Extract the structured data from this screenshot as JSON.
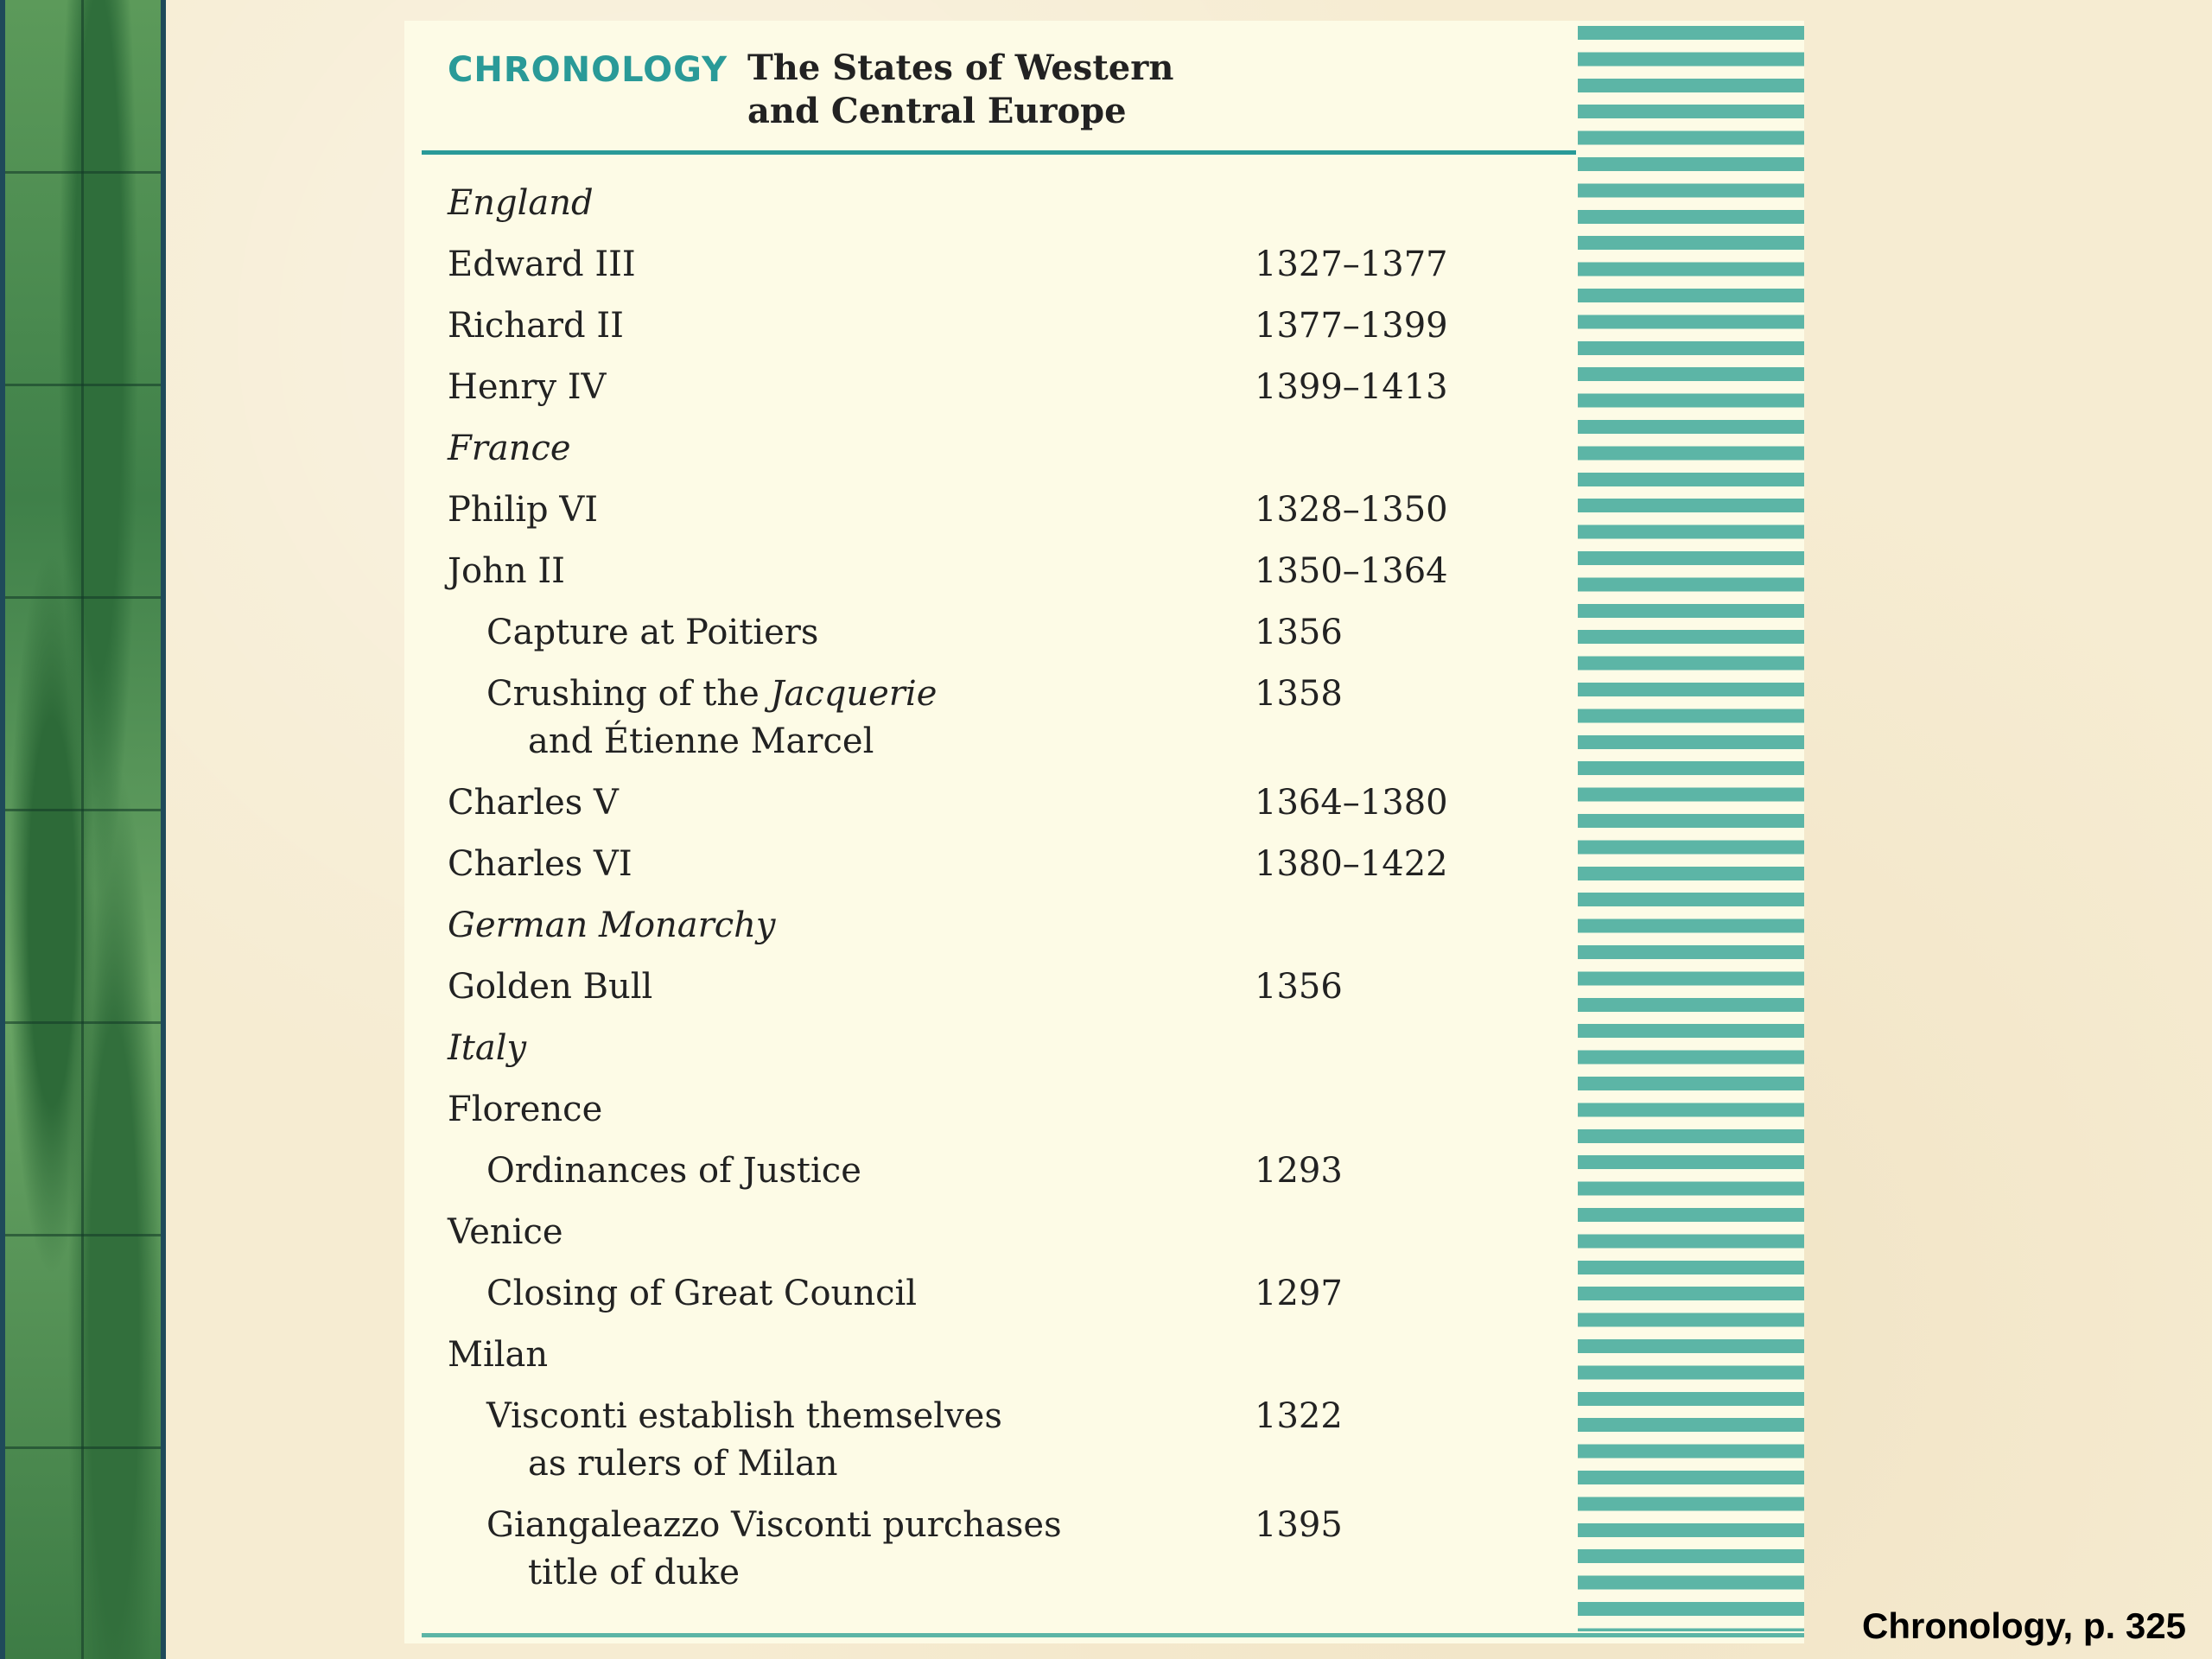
{
  "header": {
    "kicker": "CHRONOLOGY",
    "title": "The States of Western and Central Europe"
  },
  "table": {
    "rows": [
      {
        "lines": [
          "England"
        ],
        "kind": "heading"
      },
      {
        "lines": [
          "Edward III"
        ],
        "date": "1327–1377"
      },
      {
        "lines": [
          "Richard II"
        ],
        "date": "1377–1399"
      },
      {
        "lines": [
          "Henry IV"
        ],
        "date": "1399–1413"
      },
      {
        "lines": [
          "France"
        ],
        "kind": "heading"
      },
      {
        "lines": [
          "Philip VI"
        ],
        "date": "1328–1350"
      },
      {
        "lines": [
          "John II"
        ],
        "date": "1350–1364"
      },
      {
        "lines": [
          "Capture at Poitiers"
        ],
        "date": "1356",
        "indent": 1
      },
      {
        "lines": [
          [
            "Crushing of the ",
            {
              "italic": "Jacquerie"
            }
          ],
          "and Étienne Marcel"
        ],
        "date": "1358",
        "indent": 1
      },
      {
        "lines": [
          "Charles V"
        ],
        "date": "1364–1380"
      },
      {
        "lines": [
          "Charles VI"
        ],
        "date": "1380–1422"
      },
      {
        "lines": [
          "German Monarchy"
        ],
        "kind": "heading"
      },
      {
        "lines": [
          "Golden Bull"
        ],
        "date": "1356"
      },
      {
        "lines": [
          "Italy"
        ],
        "kind": "heading"
      },
      {
        "lines": [
          "Florence"
        ]
      },
      {
        "lines": [
          "Ordinances of Justice"
        ],
        "date": "1293",
        "indent": 1
      },
      {
        "lines": [
          "Venice"
        ]
      },
      {
        "lines": [
          "Closing of Great Council"
        ],
        "date": "1297",
        "indent": 1
      },
      {
        "lines": [
          "Milan"
        ]
      },
      {
        "lines": [
          "Visconti establish themselves",
          "as rulers of Milan"
        ],
        "date": "1322",
        "indent": 1
      },
      {
        "lines": [
          "Giangaleazzo Visconti purchases",
          "title of duke"
        ],
        "date": "1395",
        "indent": 1
      }
    ]
  },
  "caption": "Chronology, p. 325"
}
